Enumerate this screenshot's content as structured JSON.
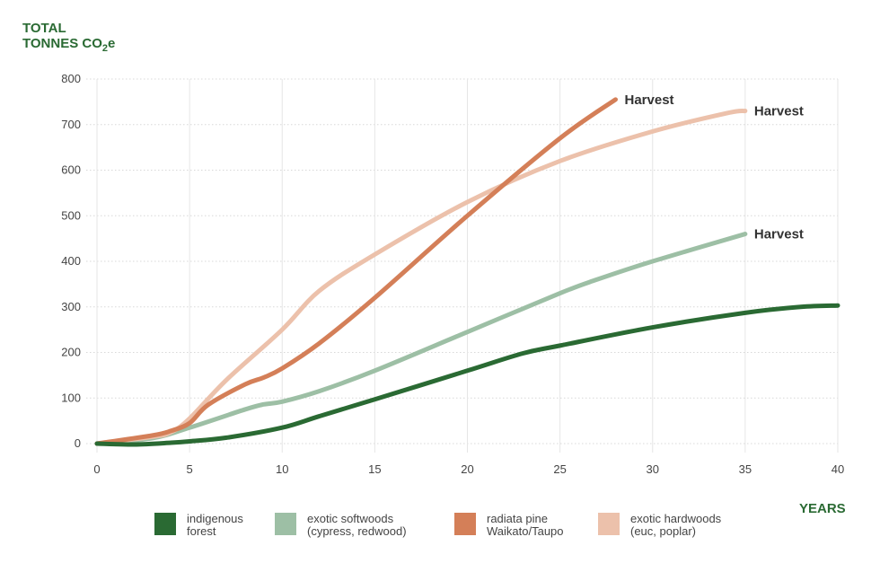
{
  "chart_data": {
    "type": "line",
    "ylabel_line1": "TOTAL",
    "ylabel_line2": "TONNES CO",
    "ylabel_sub": "2",
    "ylabel_end": "e",
    "xlabel": "YEARS",
    "xlim": [
      0,
      40
    ],
    "ylim": [
      0,
      800
    ],
    "xticks": [
      "0",
      "5",
      "10",
      "15",
      "20",
      "25",
      "30",
      "35",
      "40"
    ],
    "yticks": [
      "0",
      "100",
      "200",
      "300",
      "400",
      "500",
      "600",
      "700",
      "800"
    ],
    "grid": true,
    "legend_position": "bottom",
    "series": [
      {
        "name": "indigenous\nforest",
        "color": "#2a6a33",
        "points": [
          [
            0,
            0
          ],
          [
            2,
            -2
          ],
          [
            4,
            2
          ],
          [
            5,
            5
          ],
          [
            7,
            13
          ],
          [
            10,
            35
          ],
          [
            12,
            60
          ],
          [
            15,
            97
          ],
          [
            20,
            160
          ],
          [
            23,
            198
          ],
          [
            25,
            215
          ],
          [
            30,
            255
          ],
          [
            35,
            287
          ],
          [
            38,
            300
          ],
          [
            40,
            303
          ]
        ]
      },
      {
        "name": "exotic softwoods\n(cypress, redwood)",
        "color": "#9dbfa5",
        "annotation": "Harvest",
        "points": [
          [
            0,
            0
          ],
          [
            3,
            12
          ],
          [
            5,
            35
          ],
          [
            8,
            75
          ],
          [
            9,
            86
          ],
          [
            10,
            92
          ],
          [
            12,
            115
          ],
          [
            15,
            160
          ],
          [
            20,
            245
          ],
          [
            25,
            330
          ],
          [
            27,
            360
          ],
          [
            30,
            400
          ],
          [
            35,
            460
          ]
        ]
      },
      {
        "name": "radiata pine\nWaikato/Taupo",
        "color": "#d47f58",
        "annotation": "Harvest",
        "points": [
          [
            0,
            0
          ],
          [
            3,
            18
          ],
          [
            4,
            28
          ],
          [
            5,
            45
          ],
          [
            6,
            85
          ],
          [
            8,
            130
          ],
          [
            9,
            145
          ],
          [
            10,
            165
          ],
          [
            12,
            220
          ],
          [
            15,
            320
          ],
          [
            20,
            500
          ],
          [
            25,
            670
          ],
          [
            28,
            755
          ]
        ]
      },
      {
        "name": "exotic hardwoods\n(euc, poplar)",
        "color": "#ecc1ab",
        "annotation": "Harvest",
        "points": [
          [
            0,
            0
          ],
          [
            3,
            15
          ],
          [
            4,
            25
          ],
          [
            5,
            55
          ],
          [
            7,
            140
          ],
          [
            10,
            250
          ],
          [
            12,
            335
          ],
          [
            15,
            415
          ],
          [
            20,
            530
          ],
          [
            25,
            620
          ],
          [
            30,
            685
          ],
          [
            34,
            725
          ],
          [
            35,
            730
          ]
        ]
      }
    ]
  }
}
